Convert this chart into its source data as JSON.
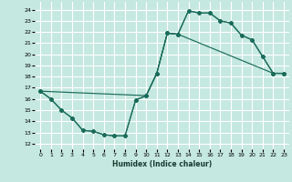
{
  "bg_color": "#c5e8e0",
  "line_color": "#1a6b5a",
  "grid_color": "#ffffff",
  "xlabel": "Humidex (Indice chaleur)",
  "xlim": [
    -0.5,
    23.5
  ],
  "ylim": [
    11.5,
    24.7
  ],
  "yticks": [
    12,
    13,
    14,
    15,
    16,
    17,
    18,
    19,
    20,
    21,
    22,
    23,
    24
  ],
  "xticks": [
    0,
    1,
    2,
    3,
    4,
    5,
    6,
    7,
    8,
    9,
    10,
    11,
    12,
    13,
    14,
    15,
    16,
    17,
    18,
    19,
    20,
    21,
    22,
    23
  ],
  "line1_x": [
    0,
    1,
    2,
    3,
    4,
    5,
    6,
    7,
    8,
    9,
    10,
    11,
    12,
    13,
    14,
    15,
    16,
    17,
    18,
    19,
    20,
    21,
    22,
    23
  ],
  "line1_y": [
    16.7,
    16.0,
    15.0,
    14.3,
    13.2,
    13.1,
    12.8,
    12.7,
    12.7,
    15.9,
    16.3,
    18.3,
    21.9,
    21.8,
    23.9,
    23.7,
    23.7,
    23.0,
    22.8,
    21.7,
    21.3,
    19.8,
    18.3,
    18.3
  ],
  "line2_x": [
    0,
    10,
    11,
    12,
    13,
    14,
    15,
    16,
    17,
    18,
    19,
    20,
    21,
    22,
    23
  ],
  "line2_y": [
    16.7,
    16.3,
    18.3,
    21.9,
    21.8,
    23.9,
    23.7,
    23.7,
    23.0,
    22.8,
    21.7,
    21.3,
    19.8,
    18.3,
    18.3
  ],
  "line3_x": [
    0,
    1,
    2,
    3,
    4,
    5,
    6,
    7,
    8,
    9,
    10,
    11,
    12,
    13,
    22,
    23
  ],
  "line3_y": [
    16.7,
    16.0,
    15.0,
    14.3,
    13.2,
    13.1,
    12.8,
    12.7,
    12.7,
    15.9,
    16.3,
    18.3,
    21.9,
    21.8,
    18.3,
    18.3
  ]
}
